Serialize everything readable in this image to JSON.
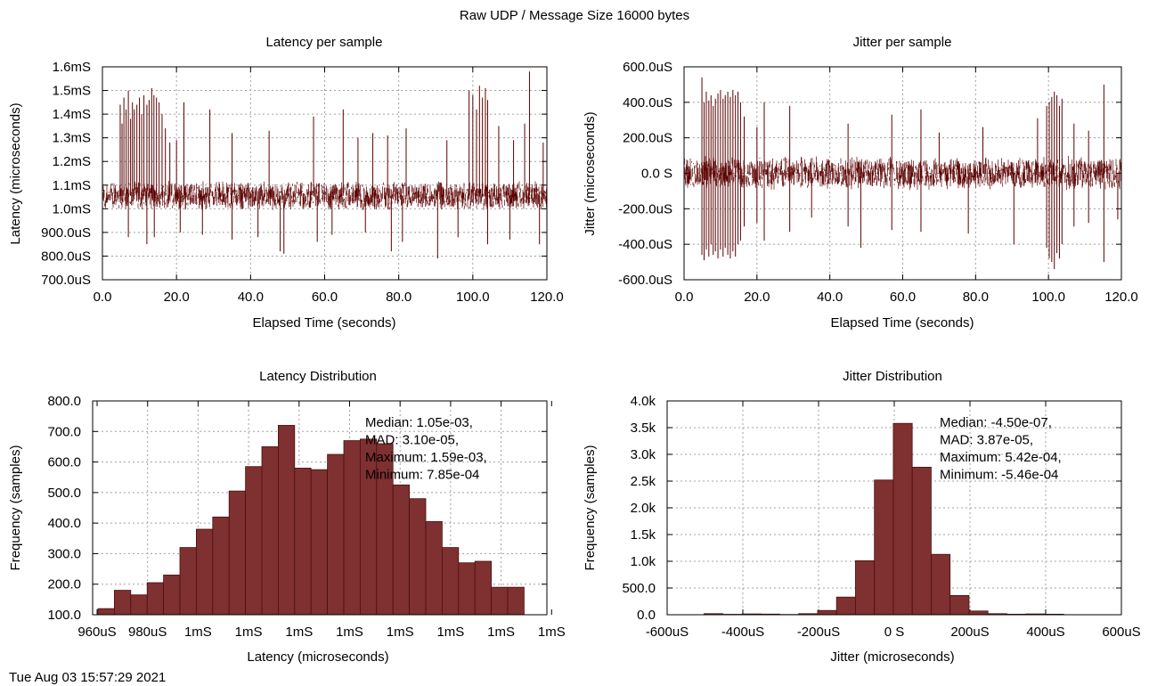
{
  "figure": {
    "title": "Raw UDP / Message Size 16000 bytes",
    "timestamp": "Tue Aug 03 15:57:29 2021"
  },
  "chart_data": [
    {
      "type": "line",
      "title": "Latency per sample",
      "xlabel": "Elapsed Time (seconds)",
      "ylabel": "Latency (microseconds)",
      "xlim": [
        0,
        120
      ],
      "ylim": [
        700,
        1600
      ],
      "x_unit": "seconds",
      "y_unit": "microseconds",
      "xticks": [
        "0.0",
        "20.0",
        "40.0",
        "60.0",
        "80.0",
        "100.0",
        "120.0"
      ],
      "yticks": [
        "700.0uS",
        "800.0uS",
        "900.0uS",
        "1.0mS",
        "1.1mS",
        "1.2mS",
        "1.3mS",
        "1.4mS",
        "1.5mS",
        "1.6mS"
      ],
      "grid": true,
      "color": "#5c0000",
      "baseline_band": [
        995,
        1115
      ],
      "spikes": [
        [
          4.8,
          1440
        ],
        [
          5.3,
          1360
        ],
        [
          5.8,
          1470
        ],
        [
          6.4,
          1420
        ],
        [
          7.0,
          1500
        ],
        [
          7.6,
          1380
        ],
        [
          8.1,
          1450
        ],
        [
          8.6,
          1420
        ],
        [
          9.3,
          1440
        ],
        [
          10.0,
          1470
        ],
        [
          10.6,
          1400
        ],
        [
          11.2,
          1480
        ],
        [
          12.0,
          1440
        ],
        [
          12.6,
          1460
        ],
        [
          13.3,
          1510
        ],
        [
          13.9,
          1480
        ],
        [
          14.6,
          1470
        ],
        [
          15.3,
          1450
        ],
        [
          16.1,
          1400
        ],
        [
          17.0,
          1340
        ],
        [
          18.2,
          1280
        ],
        [
          20.0,
          1290
        ],
        [
          22.0,
          1450
        ],
        [
          29.0,
          1420
        ],
        [
          35.0,
          1320
        ],
        [
          45.0,
          1330
        ],
        [
          57.0,
          1390
        ],
        [
          65.0,
          1420
        ],
        [
          69.0,
          1300
        ],
        [
          73.0,
          1320
        ],
        [
          77.0,
          1310
        ],
        [
          82.0,
          1340
        ],
        [
          93.0,
          1290
        ],
        [
          99.0,
          1500
        ],
        [
          100.0,
          1480
        ],
        [
          101.0,
          1420
        ],
        [
          101.8,
          1520
        ],
        [
          102.6,
          1470
        ],
        [
          103.4,
          1510
        ],
        [
          104.0,
          1460
        ],
        [
          107.0,
          1350
        ],
        [
          111.0,
          1290
        ],
        [
          114.0,
          1360
        ],
        [
          115.3,
          1580
        ],
        [
          119.0,
          1280
        ]
      ],
      "dips": [
        [
          7.0,
          880
        ],
        [
          12.0,
          850
        ],
        [
          14.0,
          880
        ],
        [
          21.0,
          900
        ],
        [
          27.0,
          890
        ],
        [
          35.0,
          870
        ],
        [
          42.0,
          880
        ],
        [
          48.0,
          820
        ],
        [
          49.0,
          810
        ],
        [
          58.0,
          860
        ],
        [
          62.0,
          890
        ],
        [
          71.0,
          900
        ],
        [
          78.0,
          820
        ],
        [
          81.0,
          860
        ],
        [
          90.5,
          790
        ],
        [
          96.0,
          880
        ],
        [
          104.0,
          850
        ],
        [
          110.0,
          870
        ],
        [
          118.0,
          850
        ]
      ]
    },
    {
      "type": "line",
      "title": "Jitter per sample",
      "xlabel": "Elapsed Time (seconds)",
      "ylabel": "Jitter (microseconds)",
      "xlim": [
        0,
        120
      ],
      "ylim": [
        -600,
        600
      ],
      "x_unit": "seconds",
      "y_unit": "microseconds",
      "xticks": [
        "0.0",
        "20.0",
        "40.0",
        "60.0",
        "80.0",
        "100.0",
        "120.0"
      ],
      "yticks": [
        "-600.0uS",
        "-400.0uS",
        "-200.0uS",
        "0.0 S",
        "200.0uS",
        "400.0uS",
        "600.0uS"
      ],
      "grid": true,
      "color": "#5c0000",
      "baseline_band": [
        -90,
        90
      ],
      "spikes": [
        [
          4.9,
          540
        ],
        [
          5.5,
          400
        ],
        [
          6.1,
          460
        ],
        [
          6.8,
          410
        ],
        [
          7.4,
          440
        ],
        [
          8.0,
          380
        ],
        [
          8.6,
          420
        ],
        [
          9.3,
          450
        ],
        [
          10.0,
          470
        ],
        [
          10.7,
          420
        ],
        [
          11.3,
          440
        ],
        [
          12.0,
          460
        ],
        [
          12.7,
          430
        ],
        [
          13.4,
          470
        ],
        [
          14.1,
          440
        ],
        [
          14.8,
          460
        ],
        [
          15.5,
          400
        ],
        [
          16.5,
          320
        ],
        [
          20.0,
          260
        ],
        [
          22.0,
          400
        ],
        [
          29.0,
          380
        ],
        [
          45.0,
          280
        ],
        [
          57.0,
          330
        ],
        [
          65.0,
          360
        ],
        [
          70.0,
          230
        ],
        [
          82.0,
          260
        ],
        [
          97.0,
          310
        ],
        [
          99.5,
          380
        ],
        [
          100.2,
          400
        ],
        [
          100.9,
          430
        ],
        [
          101.6,
          460
        ],
        [
          102.3,
          440
        ],
        [
          103.0,
          380
        ],
        [
          103.7,
          420
        ],
        [
          107.0,
          280
        ],
        [
          111.0,
          240
        ],
        [
          115.2,
          500
        ]
      ],
      "dips": [
        [
          4.9,
          -460
        ],
        [
          5.5,
          -490
        ],
        [
          6.1,
          -430
        ],
        [
          6.8,
          -470
        ],
        [
          7.4,
          -400
        ],
        [
          8.0,
          -460
        ],
        [
          8.6,
          -440
        ],
        [
          9.3,
          -480
        ],
        [
          10.0,
          -430
        ],
        [
          10.7,
          -470
        ],
        [
          11.3,
          -420
        ],
        [
          12.0,
          -460
        ],
        [
          12.7,
          -480
        ],
        [
          13.4,
          -440
        ],
        [
          14.1,
          -470
        ],
        [
          14.8,
          -400
        ],
        [
          15.5,
          -380
        ],
        [
          16.5,
          -300
        ],
        [
          20.0,
          -280
        ],
        [
          22.0,
          -380
        ],
        [
          29.0,
          -330
        ],
        [
          35.0,
          -250
        ],
        [
          45.0,
          -300
        ],
        [
          48.5,
          -420
        ],
        [
          57.0,
          -320
        ],
        [
          65.0,
          -330
        ],
        [
          78.0,
          -340
        ],
        [
          90.5,
          -400
        ],
        [
          99.5,
          -420
        ],
        [
          100.2,
          -480
        ],
        [
          100.9,
          -500
        ],
        [
          101.6,
          -540
        ],
        [
          102.3,
          -450
        ],
        [
          103.0,
          -480
        ],
        [
          103.7,
          -400
        ],
        [
          107.0,
          -300
        ],
        [
          111.0,
          -280
        ],
        [
          115.2,
          -500
        ],
        [
          119.0,
          -260
        ]
      ]
    },
    {
      "type": "bar",
      "title": "Latency Distribution",
      "xlabel": "Latency (microseconds)",
      "ylabel": "Frequency (samples)",
      "ylim": [
        100,
        800
      ],
      "xticks": [
        "960uS",
        "980uS",
        "1mS",
        "1mS",
        "1mS",
        "1mS",
        "1mS",
        "1mS",
        "1mS",
        "1mS"
      ],
      "yticks": [
        "100.0",
        "200.0",
        "300.0",
        "400.0",
        "500.0",
        "600.0",
        "700.0",
        "800.0"
      ],
      "grid": true,
      "color": "#7f3030",
      "values": [
        120,
        180,
        165,
        205,
        230,
        320,
        380,
        420,
        505,
        585,
        650,
        720,
        580,
        575,
        625,
        670,
        675,
        660,
        525,
        480,
        405,
        320,
        270,
        275,
        190,
        190
      ],
      "annotation": [
        "Median: 1.05e-03,",
        "MAD: 3.10e-05,",
        "Maximum: 1.59e-03,",
        "Minimum: 7.85e-04"
      ],
      "legend": "top-right"
    },
    {
      "type": "bar",
      "title": "Jitter Distribution",
      "xlabel": "Jitter (microseconds)",
      "ylabel": "Frequency (samples)",
      "xlim": [
        -600,
        600
      ],
      "ylim": [
        0,
        4000
      ],
      "xticks": [
        "-600uS",
        "-400uS",
        "-200uS",
        "0 S",
        "200uS",
        "400uS",
        "600uS"
      ],
      "yticks": [
        "0.0",
        "500.0",
        "1.0k",
        "1.5k",
        "2.0k",
        "2.5k",
        "3.0k",
        "3.5k",
        "4.0k"
      ],
      "grid": true,
      "color": "#7f3030",
      "bin_width": 50,
      "bins": [
        [
          -450,
          20
        ],
        [
          -400,
          8
        ],
        [
          -350,
          15
        ],
        [
          -300,
          12
        ],
        [
          -250,
          5
        ],
        [
          -200,
          20
        ],
        [
          -150,
          80
        ],
        [
          -100,
          330
        ],
        [
          -50,
          1010
        ],
        [
          0,
          2520
        ],
        [
          50,
          3580
        ],
        [
          100,
          2760
        ],
        [
          150,
          1130
        ],
        [
          200,
          360
        ],
        [
          250,
          70
        ],
        [
          300,
          20
        ],
        [
          350,
          10
        ],
        [
          400,
          15
        ],
        [
          450,
          10
        ]
      ],
      "annotation": [
        "Median: -4.50e-07,",
        "MAD: 3.87e-05,",
        "Maximum: 5.42e-04,",
        "Minimum: -5.46e-04"
      ],
      "legend": "top-right"
    }
  ]
}
